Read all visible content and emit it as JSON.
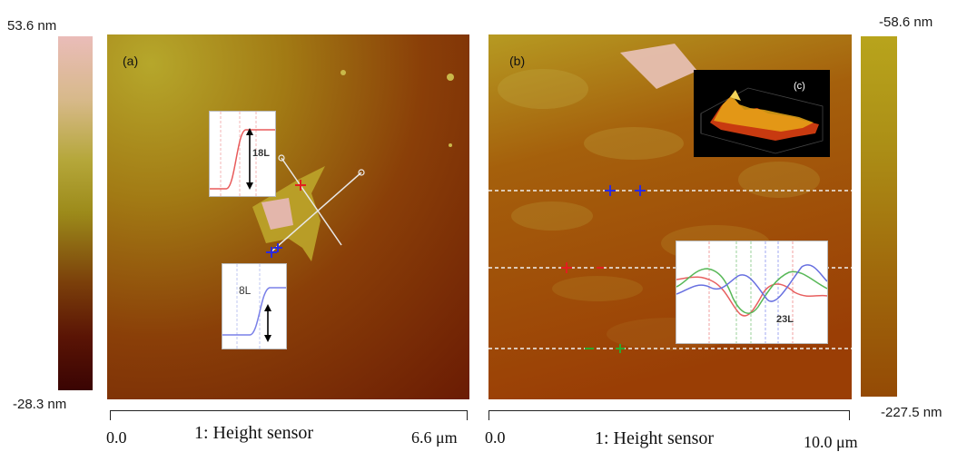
{
  "left_colorbar": {
    "max_label": "53.6 nm",
    "min_label": "-28.3 nm",
    "colors": [
      "#e9b9b5",
      "#c8b060",
      "#a58b14",
      "#7a3e0a",
      "#3a0403"
    ]
  },
  "right_colorbar": {
    "max_label": "-58.6 nm",
    "min_label": "-227.5 nm",
    "colors": [
      "#b5a21a",
      "#a57a10",
      "#944a05"
    ]
  },
  "panel_a": {
    "tag": "(a)",
    "inset_top_label": "18L",
    "inset_bottom_label": "8L",
    "axis_start": "0.0",
    "axis_end": "6.6 μm",
    "axis_title": "1: Height sensor"
  },
  "panel_b": {
    "tag": "(b)",
    "inset_3d_tag": "(c)",
    "inset_profile_label": "23L",
    "axis_start": "0.0",
    "axis_end": "10.0 μm",
    "axis_title": "1: Height sensor"
  }
}
